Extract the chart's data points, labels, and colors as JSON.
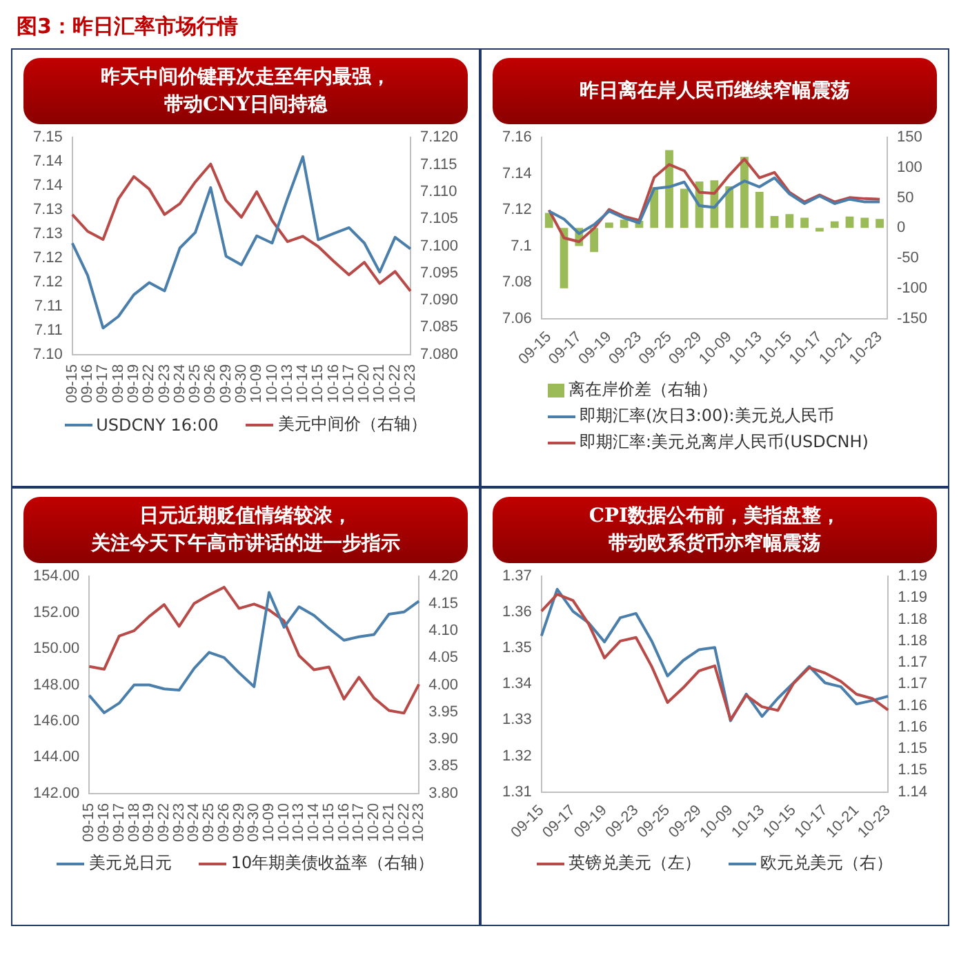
{
  "chart_data": [
    {
      "type": "other",
      "title": "图3：昨日汇率市场行情"
    },
    {
      "type": "line",
      "title": "昨天中间价键再次走至年内最强，带动CNY日间持稳",
      "legend": "bottom",
      "marker": "none",
      "grid": false,
      "categories": [
        "09-15",
        "09-16",
        "09-17",
        "09-18",
        "09-19",
        "09-22",
        "09-23",
        "09-24",
        "09-25",
        "09-26",
        "09-29",
        "09-30",
        "10-09",
        "10-10",
        "10-13",
        "10-14",
        "10-15",
        "10-16",
        "10-17",
        "10-20",
        "10-21",
        "10-22",
        "10-23"
      ],
      "ylim": [
        7.1,
        7.145
      ],
      "yticks": [
        {
          "value": 7.1,
          "label": "7.10"
        },
        {
          "value": 7.105,
          "label": "7.11"
        },
        {
          "value": 7.11,
          "label": "7.11"
        },
        {
          "value": 7.115,
          "label": "7.12"
        },
        {
          "value": 7.12,
          "label": "7.12"
        },
        {
          "value": 7.125,
          "label": "7.13"
        },
        {
          "value": 7.13,
          "label": "7.13"
        },
        {
          "value": 7.135,
          "label": "7.14"
        },
        {
          "value": 7.14,
          "label": "7.14"
        },
        {
          "value": 7.145,
          "label": "7.15"
        }
      ],
      "y2lim": [
        7.08,
        7.12
      ],
      "y2ticks": [
        {
          "value": 7.08,
          "label": "7.080"
        },
        {
          "value": 7.085,
          "label": "7.085"
        },
        {
          "value": 7.09,
          "label": "7.090"
        },
        {
          "value": 7.095,
          "label": "7.095"
        },
        {
          "value": 7.1,
          "label": "7.100"
        },
        {
          "value": 7.105,
          "label": "7.105"
        },
        {
          "value": 7.11,
          "label": "7.110"
        },
        {
          "value": 7.115,
          "label": "7.115"
        },
        {
          "value": 7.12,
          "label": "7.120"
        }
      ],
      "series": [
        {
          "name": "USDCNY 16:00",
          "color": "#4a7eab",
          "values": [
            7.1231,
            7.1164,
            7.1055,
            7.1079,
            7.1124,
            7.1149,
            7.1132,
            7.1221,
            7.1253,
            7.1346,
            7.1204,
            7.1186,
            7.1246,
            7.1231,
            7.1323,
            7.141,
            7.1238,
            7.1251,
            7.1263,
            7.1231,
            7.1171,
            7.1243,
            7.1219
          ]
        },
        {
          "name": "美元中间价（右轴）",
          "color": "#b84a48",
          "axis": "y2",
          "values": [
            7.1058,
            7.1027,
            7.1012,
            7.1087,
            7.1128,
            7.1105,
            7.1058,
            7.1078,
            7.1118,
            7.1151,
            7.1084,
            7.1053,
            7.11,
            7.1047,
            7.1008,
            7.1018,
            7.0999,
            7.0972,
            7.0947,
            7.097,
            7.0931,
            7.0953,
            7.0917
          ]
        }
      ]
    },
    {
      "type": "line",
      "title": "昨日离在岸人民币继续窄幅震荡",
      "legend": "bottom",
      "marker": "none",
      "grid": false,
      "categories": [
        "09-15",
        null,
        "09-17",
        null,
        "09-19",
        null,
        "09-23",
        null,
        "09-25",
        null,
        "09-29",
        null,
        "10-09",
        null,
        "10-13",
        null,
        "10-15",
        null,
        "10-17",
        null,
        "10-21",
        null,
        "10-23"
      ],
      "ylim": [
        7.06,
        7.16
      ],
      "yticks": [
        7.06,
        7.08,
        7.1,
        7.12,
        7.14,
        7.16
      ],
      "y2lim": [
        -150,
        150
      ],
      "y2ticks": [
        -150,
        -100,
        -50,
        0,
        50,
        100,
        150
      ],
      "series": [
        {
          "name": "离在岸价差（右轴）",
          "type": "bar",
          "color": "#9bbb59",
          "axis": "y2",
          "values": [
            25,
            -100,
            -30,
            -40,
            9,
            14,
            12,
            68,
            129,
            65,
            77,
            79,
            69,
            118,
            60,
            20,
            23,
            17,
            -6,
            11,
            19,
            17,
            15
          ]
        },
        {
          "name": "即期汇率(次日3:00):美元兑人民币",
          "color": "#4a7eab",
          "values": [
            7.1193,
            7.1149,
            7.1069,
            7.1119,
            7.1193,
            7.1155,
            7.1128,
            7.1318,
            7.1327,
            7.1354,
            7.1223,
            7.1214,
            7.1312,
            7.136,
            7.1327,
            7.1377,
            7.1288,
            7.1235,
            7.1277,
            7.1235,
            7.1259,
            7.1244,
            7.1244
          ]
        },
        {
          "name": "即期汇率:美元兑离岸人民币(USDCNH)",
          "color": "#b84a48",
          "values": [
            7.1199,
            7.1045,
            7.1024,
            7.1099,
            7.1202,
            7.1164,
            7.1143,
            7.138,
            7.1451,
            7.1416,
            7.1297,
            7.1291,
            7.1392,
            7.1481,
            7.1377,
            7.1407,
            7.1297,
            7.1244,
            7.1282,
            7.1244,
            7.1268,
            7.1262,
            7.1259
          ]
        }
      ]
    },
    {
      "type": "line",
      "title": "日元近期贬值情绪较浓，关注今天下午高市讲话的进一步指示",
      "legend": "bottom",
      "marker": "none",
      "grid": false,
      "categories": [
        "09-15",
        "09-16",
        "09-17",
        "09-18",
        "09-19",
        "09-22",
        "09-23",
        "09-24",
        "09-25",
        "09-26",
        "09-29",
        "09-30",
        "10-09",
        "10-10",
        "10-13",
        "10-14",
        "10-15",
        "10-16",
        "10-17",
        "10-20",
        "10-21",
        "10-22",
        "10-23"
      ],
      "ylim": [
        142,
        154
      ],
      "yticks": [
        {
          "value": 142,
          "label": "142.00"
        },
        {
          "value": 144,
          "label": "144.00"
        },
        {
          "value": 146,
          "label": "146.00"
        },
        {
          "value": 148,
          "label": "148.00"
        },
        {
          "value": 150,
          "label": "150.00"
        },
        {
          "value": 152,
          "label": "152.00"
        },
        {
          "value": 154,
          "label": "154.00"
        }
      ],
      "y2lim": [
        3.8,
        4.2
      ],
      "y2ticks": [
        {
          "value": 3.8,
          "label": "3.80"
        },
        {
          "value": 3.85,
          "label": "3.85"
        },
        {
          "value": 3.9,
          "label": "3.90"
        },
        {
          "value": 3.95,
          "label": "3.95"
        },
        {
          "value": 4.0,
          "label": "4.00"
        },
        {
          "value": 4.05,
          "label": "4.05"
        },
        {
          "value": 4.1,
          "label": "4.10"
        },
        {
          "value": 4.15,
          "label": "4.15"
        },
        {
          "value": 4.2,
          "label": "4.20"
        }
      ],
      "series": [
        {
          "name": "美元兑日元",
          "color": "#4a7eab",
          "values": [
            147.42,
            146.46,
            146.99,
            148.0,
            148.0,
            147.78,
            147.71,
            148.91,
            149.8,
            149.51,
            148.67,
            147.9,
            153.11,
            151.19,
            152.32,
            151.84,
            151.12,
            150.47,
            150.66,
            150.78,
            151.91,
            152.03,
            152.63
          ]
        },
        {
          "name": "10年期美债收益率（右轴）",
          "color": "#b84a48",
          "axis": "y2",
          "values": [
            4.034,
            4.029,
            4.09,
            4.1,
            4.126,
            4.148,
            4.108,
            4.15,
            4.166,
            4.18,
            4.141,
            4.149,
            4.138,
            4.118,
            4.054,
            4.028,
            4.033,
            3.974,
            4.014,
            3.976,
            3.953,
            3.948,
            4.001
          ]
        }
      ]
    },
    {
      "type": "line",
      "title": "CPI数据公布前，美指盘整，带动欧系货币亦窄幅震荡",
      "legend": "bottom",
      "marker": "none",
      "grid": false,
      "categories": [
        "09-15",
        null,
        "09-17",
        null,
        "09-19",
        null,
        "09-23",
        null,
        "09-25",
        null,
        "09-29",
        null,
        "10-09",
        null,
        "10-13",
        null,
        "10-15",
        null,
        "10-17",
        null,
        "10-21",
        null,
        "10-23"
      ],
      "ylim": [
        1.31,
        1.37
      ],
      "yticks": [
        1.31,
        1.32,
        1.33,
        1.34,
        1.35,
        1.36,
        1.37
      ],
      "y2lim": [
        1.14,
        1.19
      ],
      "y2ticks": [
        {
          "value": 1.14,
          "label": "1.14"
        },
        {
          "value": 1.145,
          "label": "1.15"
        },
        {
          "value": 1.15,
          "label": "1.15"
        },
        {
          "value": 1.155,
          "label": "1.16"
        },
        {
          "value": 1.16,
          "label": "1.16"
        },
        {
          "value": 1.165,
          "label": "1.17"
        },
        {
          "value": 1.17,
          "label": "1.17"
        },
        {
          "value": 1.175,
          "label": "1.18"
        },
        {
          "value": 1.18,
          "label": "1.18"
        },
        {
          "value": 1.185,
          "label": "1.19"
        },
        {
          "value": 1.19,
          "label": "1.19"
        }
      ],
      "series": [
        {
          "name": "英镑兑美元（左）",
          "color": "#b84a48",
          "values": [
            1.3603,
            1.365,
            1.3633,
            1.3567,
            1.3473,
            1.352,
            1.353,
            1.3449,
            1.3349,
            1.339,
            1.3437,
            1.3451,
            1.3301,
            1.3369,
            1.3337,
            1.3327,
            1.3402,
            1.3446,
            1.3431,
            1.3408,
            1.3372,
            1.336,
            1.3328
          ]
        },
        {
          "name": "欧元兑美元（右）",
          "color": "#4a7eab",
          "axis": "y2",
          "values": [
            1.1762,
            1.187,
            1.1819,
            1.1792,
            1.1748,
            1.1804,
            1.1814,
            1.175,
            1.1669,
            1.1705,
            1.173,
            1.1735,
            1.1565,
            1.1627,
            1.1575,
            1.1617,
            1.1653,
            1.1691,
            1.1653,
            1.1644,
            1.1604,
            1.1612,
            1.1622
          ]
        }
      ]
    }
  ]
}
